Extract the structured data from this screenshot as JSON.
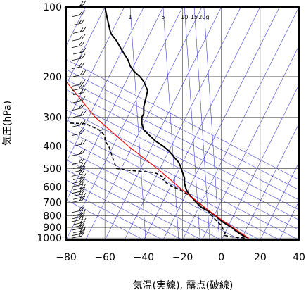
{
  "chart_data": {
    "type": "line",
    "subtype": "skew-t log-p aerological diagram",
    "xlabel": "気温(実線), 露点(破線)",
    "ylabel": "気圧(hPa)",
    "xlim": [
      -80,
      40
    ],
    "ylim": [
      1020,
      100
    ],
    "y_scale": "log",
    "x_ticks": [
      -80,
      -60,
      -40,
      -20,
      0,
      20,
      40
    ],
    "x_tick_labels": [
      "−80",
      "−60",
      "−40",
      "−20",
      "0",
      "20",
      "40"
    ],
    "y_ticks": [
      100,
      200,
      300,
      400,
      500,
      600,
      700,
      800,
      900,
      1000
    ],
    "y_tick_labels": [
      "100",
      "200",
      "300",
      "400",
      "500",
      "600",
      "700",
      "800",
      "900",
      "1000"
    ],
    "mixing_ratio_labels": [
      "1",
      "5",
      "10",
      "15",
      "20g"
    ],
    "mixing_ratio_label_values_c": [
      -47,
      -30,
      -19,
      -14,
      -9
    ],
    "grid": true,
    "colors": {
      "background_lines": "#3333cc",
      "temperature": "#000000",
      "dewpoint": "#000000",
      "parcel": "#ff0000",
      "gridlines": "#555555",
      "wind_barbs": "#000000"
    },
    "series": [
      {
        "style": "solid",
        "points": [
          {
            "p": 1000,
            "x": 14
          },
          {
            "p": 980,
            "x": 11.5
          },
          {
            "p": 950,
            "x": 9
          },
          {
            "p": 925,
            "x": 7
          },
          {
            "p": 900,
            "x": 5.5
          },
          {
            "p": 870,
            "x": 2.5
          },
          {
            "p": 850,
            "x": 0.5
          },
          {
            "p": 830,
            "x": -1
          },
          {
            "p": 800,
            "x": -3
          },
          {
            "p": 770,
            "x": -6
          },
          {
            "p": 740,
            "x": -10
          },
          {
            "p": 700,
            "x": -13
          },
          {
            "p": 670,
            "x": -15
          },
          {
            "p": 640,
            "x": -17
          },
          {
            "p": 620,
            "x": -18
          },
          {
            "p": 600,
            "x": -18.5
          },
          {
            "p": 580,
            "x": -19
          },
          {
            "p": 550,
            "x": -19
          },
          {
            "p": 520,
            "x": -20
          },
          {
            "p": 490,
            "x": -21
          },
          {
            "p": 470,
            "x": -22
          },
          {
            "p": 450,
            "x": -24
          },
          {
            "p": 420,
            "x": -27
          },
          {
            "p": 400,
            "x": -30
          },
          {
            "p": 380,
            "x": -34
          },
          {
            "p": 360,
            "x": -37
          },
          {
            "p": 340,
            "x": -40
          },
          {
            "p": 320,
            "x": -41
          },
          {
            "p": 300,
            "x": -41
          },
          {
            "p": 290,
            "x": -40
          },
          {
            "p": 270,
            "x": -40
          },
          {
            "p": 250,
            "x": -39
          },
          {
            "p": 230,
            "x": -38
          },
          {
            "p": 210,
            "x": -40
          },
          {
            "p": 200,
            "x": -42
          },
          {
            "p": 190,
            "x": -45
          },
          {
            "p": 180,
            "x": -47
          },
          {
            "p": 170,
            "x": -48
          },
          {
            "p": 160,
            "x": -50
          },
          {
            "p": 150,
            "x": -52
          },
          {
            "p": 140,
            "x": -54
          },
          {
            "p": 130,
            "x": -57
          },
          {
            "p": 120,
            "x": -58
          },
          {
            "p": 110,
            "x": -59
          },
          {
            "p": 100,
            "x": -60
          }
        ]
      },
      {
        "style": "dashed",
        "points": [
          {
            "p": 1000,
            "x": 12
          },
          {
            "p": 985,
            "x": 4
          },
          {
            "p": 970,
            "x": 1
          },
          {
            "p": 950,
            "x": 2
          },
          {
            "p": 920,
            "x": 1
          },
          {
            "p": 880,
            "x": 0
          },
          {
            "p": 850,
            "x": -2
          },
          {
            "p": 800,
            "x": -5
          },
          {
            "p": 760,
            "x": -7
          },
          {
            "p": 700,
            "x": -12
          },
          {
            "p": 660,
            "x": -16
          },
          {
            "p": 620,
            "x": -21
          },
          {
            "p": 600,
            "x": -25
          },
          {
            "p": 580,
            "x": -28
          },
          {
            "p": 560,
            "x": -30
          },
          {
            "p": 550,
            "x": -29
          },
          {
            "p": 540,
            "x": -31
          },
          {
            "p": 530,
            "x": -32
          },
          {
            "p": 520,
            "x": -35
          },
          {
            "p": 510,
            "x": -47
          },
          {
            "p": 500,
            "x": -54
          },
          {
            "p": 450,
            "x": -56
          },
          {
            "p": 400,
            "x": -58
          },
          {
            "p": 380,
            "x": -60
          },
          {
            "p": 360,
            "x": -60
          },
          {
            "p": 340,
            "x": -63
          },
          {
            "p": 320,
            "x": -70
          },
          {
            "p": 318,
            "x": -78
          }
        ]
      },
      {
        "style": "solid-red",
        "points": [
          {
            "p": 1000,
            "x": 14
          },
          {
            "p": 900,
            "x": 6
          },
          {
            "p": 800,
            "x": -3
          },
          {
            "p": 700,
            "x": -12
          },
          {
            "p": 600,
            "x": -22
          },
          {
            "p": 500,
            "x": -33
          },
          {
            "p": 400,
            "x": -48
          },
          {
            "p": 300,
            "x": -65
          },
          {
            "p": 210,
            "x": -80
          }
        ]
      }
    ],
    "wind_levels_hpa": [
      1000,
      975,
      950,
      925,
      900,
      875,
      850,
      825,
      800,
      775,
      700,
      680,
      660,
      640,
      620,
      600,
      580,
      560,
      540,
      520,
      500,
      480,
      440,
      400,
      360,
      330,
      300,
      280,
      260,
      240,
      230,
      220,
      200,
      185,
      170,
      160,
      150,
      140,
      130,
      120,
      110,
      100
    ]
  }
}
